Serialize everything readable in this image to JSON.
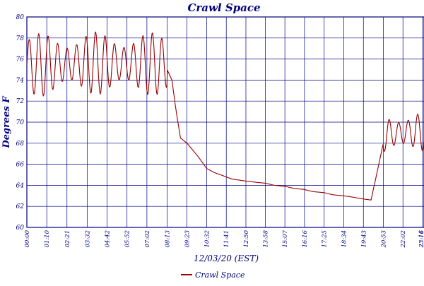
{
  "chart_data": {
    "type": "line",
    "title": "Crawl Space",
    "xlabel": "12/03/20 (EST)",
    "ylabel": "Degrees F",
    "ylim": [
      60,
      80
    ],
    "yticks": [
      "60",
      "62",
      "64",
      "66",
      "68",
      "70",
      "72",
      "74",
      "76",
      "78",
      "80"
    ],
    "xticks": [
      "00:00",
      "01:10",
      "02:21",
      "03:32",
      "04:42",
      "05:52",
      "07:02",
      "08:13",
      "09:23",
      "10:32",
      "11:41",
      "12:50",
      "13:58",
      "15:07",
      "16:16",
      "17:25",
      "18:34",
      "19:43",
      "20:53",
      "22:02",
      "23:11",
      "23:16"
    ],
    "grid": true,
    "legend_position": "bottom-center",
    "colors": {
      "series": "#990000",
      "frame": "#000080",
      "text": "#000080"
    },
    "series": [
      {
        "name": "Crawl Space",
        "oscillation": [
          {
            "from": "00:00",
            "to": "08:13",
            "low": 72.5,
            "high": 78.5
          },
          {
            "from": "20:53",
            "to": "23:16",
            "low": 67.0,
            "high": 71.0
          }
        ],
        "x": [
          "00:00",
          "01:10",
          "02:21",
          "03:32",
          "04:42",
          "05:52",
          "07:02",
          "08:13",
          "08:30",
          "08:45",
          "09:00",
          "09:23",
          "10:00",
          "10:32",
          "11:00",
          "11:41",
          "12:00",
          "12:50",
          "13:20",
          "13:58",
          "14:30",
          "15:07",
          "15:40",
          "16:16",
          "16:45",
          "17:25",
          "17:55",
          "18:34",
          "19:00",
          "19:43",
          "20:10",
          "20:53",
          "21:30",
          "22:02",
          "22:40",
          "23:11",
          "23:16"
        ],
        "y": [
          75.0,
          75.2,
          75.8,
          76.2,
          76.0,
          76.3,
          75.8,
          75.0,
          74.0,
          71.0,
          68.5,
          68.0,
          66.8,
          65.6,
          65.2,
          64.8,
          64.6,
          64.4,
          64.3,
          64.2,
          64.0,
          63.9,
          63.7,
          63.6,
          63.4,
          63.3,
          63.1,
          63.0,
          62.9,
          62.7,
          62.6,
          68.0,
          68.5,
          69.0,
          69.5,
          70.0,
          70.2
        ]
      }
    ]
  }
}
